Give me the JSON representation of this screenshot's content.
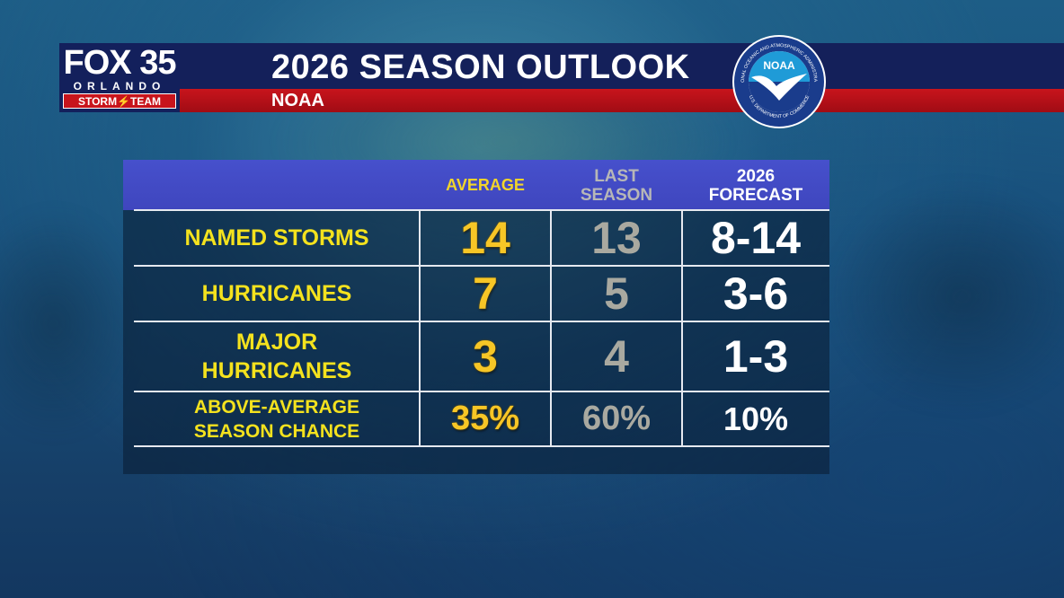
{
  "header": {
    "title": "2026 SEASON OUTLOOK",
    "subtitle": "NOAA"
  },
  "logo": {
    "fox": "FOX 35",
    "city": "ORLANDO",
    "team": "STORM⚡TEAM"
  },
  "seal": {
    "center_text": "NOAA",
    "ring_top": "NATIONAL OCEANIC AND ATMOSPHERIC ADMINISTRATION",
    "ring_bottom": "U.S. DEPARTMENT OF COMMERCE"
  },
  "table": {
    "columns": {
      "average": "AVERAGE",
      "last_line1": "LAST",
      "last_line2": "SEASON",
      "forecast_line1": "2026",
      "forecast_line2": "FORECAST"
    },
    "rows": [
      {
        "label": "NAMED STORMS",
        "average": "14",
        "last": "13",
        "forecast": "8-14"
      },
      {
        "label": "HURRICANES",
        "average": "7",
        "last": "5",
        "forecast": "3-6"
      },
      {
        "label": "MAJOR\nHURRICANES",
        "average": "3",
        "last": "4",
        "forecast": "1-3"
      },
      {
        "label": "ABOVE-AVERAGE\nSEASON CHANCE",
        "average": "35%",
        "last": "60%",
        "forecast": "10%"
      }
    ]
  },
  "colors": {
    "title_bar": "#14205a",
    "sub_bar": "#c8141c",
    "table_header": "#4650cc",
    "label_yellow": "#f4e21e",
    "average_gold": "#f7c626",
    "last_gray": "#a9a9a0"
  }
}
